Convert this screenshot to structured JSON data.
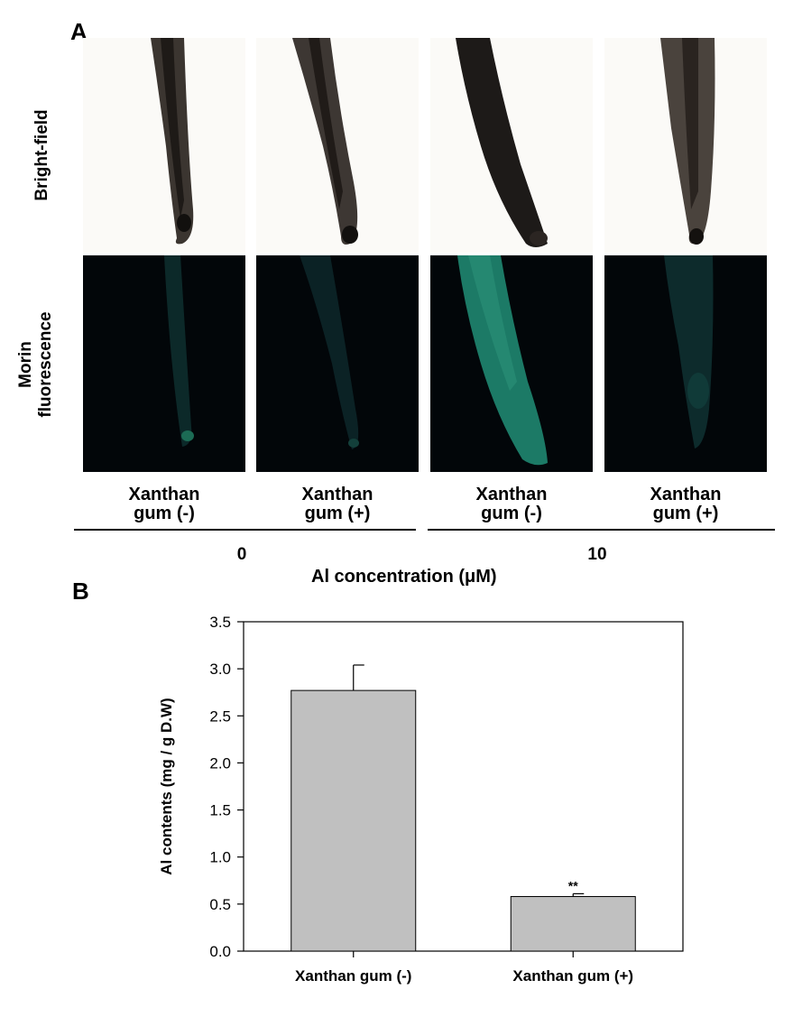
{
  "panel_a": {
    "letter": "A",
    "row_labels": {
      "bright": "Bright-field",
      "morin_line1": "Morin",
      "morin_line2": "fluorescence"
    },
    "columns": [
      {
        "line1": "Xanthan",
        "line2": "gum (-)"
      },
      {
        "line1": "Xanthan",
        "line2": "gum (+)"
      },
      {
        "line1": "Xanthan",
        "line2": "gum (-)"
      },
      {
        "line1": "Xanthan",
        "line2": "gum (+)"
      }
    ],
    "concentrations": [
      "0",
      "10"
    ],
    "axis_title": "Al concentration (μM)"
  },
  "panel_b": {
    "letter": "B"
  },
  "chart_data": {
    "type": "bar",
    "categories": [
      "Xanthan gum (-)",
      "Xanthan gum (+)"
    ],
    "values": [
      2.77,
      0.58
    ],
    "errors": [
      0.27,
      0.03
    ],
    "annotations": [
      "",
      "**"
    ],
    "ylabel": "Al contents (mg / g D.W)",
    "xlabel": "",
    "ylim": [
      0,
      3.5
    ],
    "yticks": [
      "0.0",
      "0.5",
      "1.0",
      "1.5",
      "2.0",
      "2.5",
      "3.0",
      "3.5"
    ],
    "grid": false,
    "bar_color": "#c0c0c0"
  }
}
